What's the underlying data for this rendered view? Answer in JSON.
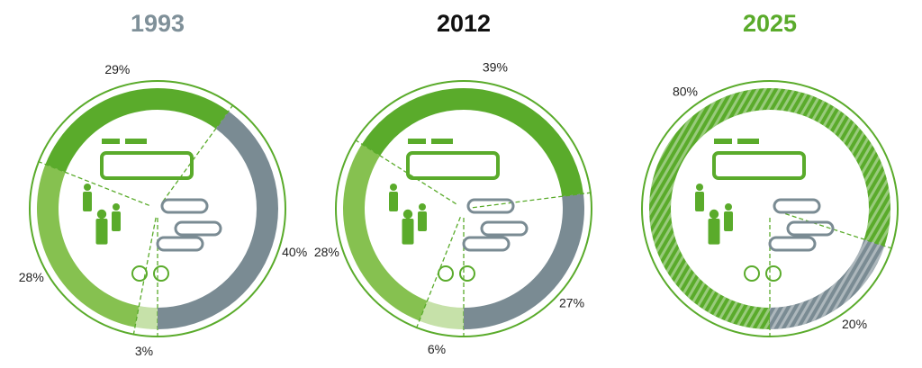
{
  "chart_data": [
    {
      "type": "donut",
      "title": "1993",
      "title_color": "#7f9099",
      "values": [
        3,
        28,
        29,
        40
      ],
      "value_labels": [
        "3%",
        "28%",
        "29%",
        "40%"
      ],
      "colors": [
        "#c6e1a9",
        "#86c150",
        "#5aab2b",
        "#7a8b93"
      ],
      "hatched": false
    },
    {
      "type": "donut",
      "title": "2012",
      "title_color": "#111111",
      "values": [
        6,
        28,
        39,
        27
      ],
      "value_labels": [
        "6%",
        "28%",
        "39%",
        "27%"
      ],
      "colors": [
        "#c6e1a9",
        "#86c150",
        "#5aab2b",
        "#7a8b93"
      ],
      "hatched": false
    },
    {
      "type": "donut",
      "title": "2025",
      "title_color": "#5aab2b",
      "values": [
        80,
        20
      ],
      "value_labels": [
        "80%",
        "20%"
      ],
      "colors": [
        "#5aab2b",
        "#7a8b93"
      ],
      "hatched": true
    }
  ]
}
